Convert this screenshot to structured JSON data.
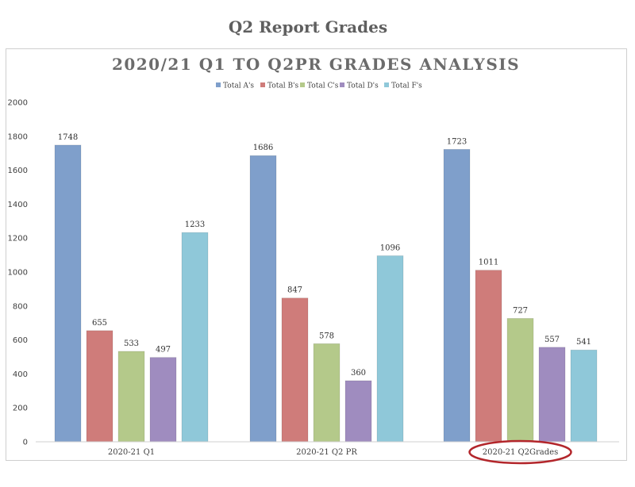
{
  "page": {
    "title": "Q2 Report Grades"
  },
  "chart_data": {
    "type": "bar",
    "title": "2020/21 Q1 TO Q2PR GRADES ANALYSIS",
    "xlabel": "",
    "ylabel": "",
    "ylim": [
      0,
      2000
    ],
    "yticks": [
      0,
      200,
      400,
      600,
      800,
      1000,
      1200,
      1400,
      1600,
      1800,
      2000
    ],
    "grid": false,
    "legend_position": "top",
    "categories": [
      "2020-21 Q1",
      "2020-21 Q2 PR",
      "2020-21 Q2Grades"
    ],
    "highlighted_category": "2020-21 Q2Grades",
    "series": [
      {
        "name": "Total A's",
        "color": "#7f9fcb",
        "values": [
          1748,
          1686,
          1723
        ]
      },
      {
        "name": "Total B's",
        "color": "#cf7c7a",
        "values": [
          655,
          847,
          1011
        ]
      },
      {
        "name": "Total C's",
        "color": "#b4c98a",
        "values": [
          533,
          578,
          727
        ]
      },
      {
        "name": "Total D's",
        "color": "#9f8cbf",
        "values": [
          497,
          360,
          557
        ]
      },
      {
        "name": "Total F's",
        "color": "#8fc8d9",
        "values": [
          1233,
          1096,
          541
        ]
      }
    ]
  }
}
